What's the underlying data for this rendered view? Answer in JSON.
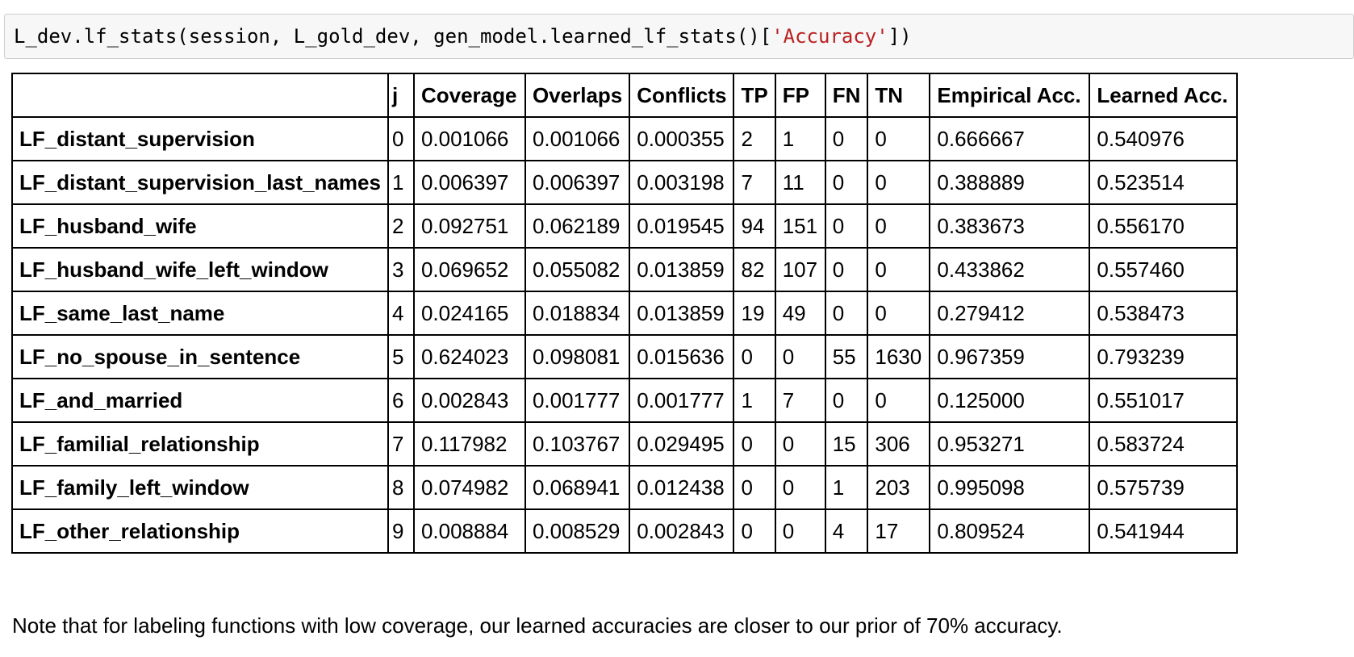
{
  "code_cell": {
    "prefix": "L_dev.lf_stats(session, L_gold_dev, gen_model.learned_lf_stats()[",
    "string_literal": "'Accuracy'",
    "suffix": "])"
  },
  "table": {
    "columns": [
      "",
      "j",
      "Coverage",
      "Overlaps",
      "Conflicts",
      "TP",
      "FP",
      "FN",
      "TN",
      "Empirical Acc.",
      "Learned Acc."
    ],
    "rows": [
      {
        "name": "LF_distant_supervision",
        "cells": [
          "0",
          "0.001066",
          "0.001066",
          "0.000355",
          "2",
          "1",
          "0",
          "0",
          "0.666667",
          "0.540976"
        ]
      },
      {
        "name": "LF_distant_supervision_last_names",
        "cells": [
          "1",
          "0.006397",
          "0.006397",
          "0.003198",
          "7",
          "11",
          "0",
          "0",
          "0.388889",
          "0.523514"
        ]
      },
      {
        "name": "LF_husband_wife",
        "cells": [
          "2",
          "0.092751",
          "0.062189",
          "0.019545",
          "94",
          "151",
          "0",
          "0",
          "0.383673",
          "0.556170"
        ]
      },
      {
        "name": "LF_husband_wife_left_window",
        "cells": [
          "3",
          "0.069652",
          "0.055082",
          "0.013859",
          "82",
          "107",
          "0",
          "0",
          "0.433862",
          "0.557460"
        ]
      },
      {
        "name": "LF_same_last_name",
        "cells": [
          "4",
          "0.024165",
          "0.018834",
          "0.013859",
          "19",
          "49",
          "0",
          "0",
          "0.279412",
          "0.538473"
        ]
      },
      {
        "name": "LF_no_spouse_in_sentence",
        "cells": [
          "5",
          "0.624023",
          "0.098081",
          "0.015636",
          "0",
          "0",
          "55",
          "1630",
          "0.967359",
          "0.793239"
        ]
      },
      {
        "name": "LF_and_married",
        "cells": [
          "6",
          "0.002843",
          "0.001777",
          "0.001777",
          "1",
          "7",
          "0",
          "0",
          "0.125000",
          "0.551017"
        ]
      },
      {
        "name": "LF_familial_relationship",
        "cells": [
          "7",
          "0.117982",
          "0.103767",
          "0.029495",
          "0",
          "0",
          "15",
          "306",
          "0.953271",
          "0.583724"
        ]
      },
      {
        "name": "LF_family_left_window",
        "cells": [
          "8",
          "0.074982",
          "0.068941",
          "0.012438",
          "0",
          "0",
          "1",
          "203",
          "0.995098",
          "0.575739"
        ]
      },
      {
        "name": "LF_other_relationship",
        "cells": [
          "9",
          "0.008884",
          "0.008529",
          "0.002843",
          "0",
          "0",
          "4",
          "17",
          "0.809524",
          "0.541944"
        ]
      }
    ]
  },
  "note": "Note that for labeling functions with low coverage, our learned accuracies are closer to our prior of 70% accuracy."
}
